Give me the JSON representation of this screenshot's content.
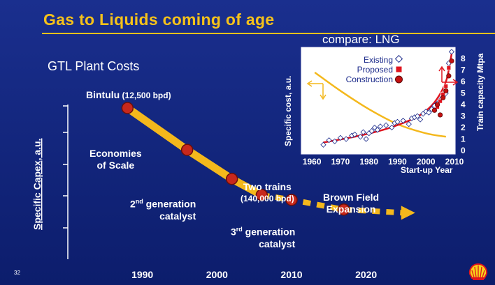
{
  "slide": {
    "title": "Gas to Liquids coming of age",
    "subtitle": "GTL Plant Costs",
    "page_number": "32",
    "logo": "shell-pecten-icon"
  },
  "main_chart": {
    "ylabel": "Specific Capex, a.u.",
    "x_ticks": [
      "1990",
      "2000",
      "2010",
      "2020"
    ],
    "x_tick_values": [
      1990,
      2000,
      2010,
      2020
    ],
    "x_range": [
      1980,
      2028
    ],
    "labels": {
      "bintulu": "Bintulu",
      "bintulu_sub": " (12,500 bpd)",
      "economies_1": "Economies",
      "economies_2": "of Scale",
      "gen2_pre": "2",
      "gen2_sup": "nd",
      "gen2_post": " generation",
      "gen2_line2": "catalyst",
      "two_trains_1": "Two trains",
      "two_trains_2": "(140,000 bpd)",
      "gen3_pre": "3",
      "gen3_sup": "rd",
      "gen3_post": " generation",
      "gen3_line2": "catalyst",
      "brown_1": "Brown Field",
      "brown_2": "Expansion"
    }
  },
  "chart_data": [
    {
      "type": "line",
      "title": "GTL Plant Costs",
      "ylabel": "Specific Capex, a.u.",
      "x_range": [
        1980,
        2028
      ],
      "series": [
        {
          "name": "",
          "points": [
            [
              1988,
              1.0
            ],
            [
              1996,
              0.74
            ],
            [
              2002,
              0.56
            ],
            [
              2006,
              0.46
            ],
            [
              2010,
              0.43
            ],
            [
              2017,
              0.37
            ]
          ],
          "style": "solid-then-dashed"
        }
      ],
      "milestones": [
        {
          "x": 1988,
          "label": "Bintulu (12,500 bpd)"
        },
        {
          "x": 1996,
          "label": "Economies of Scale"
        },
        {
          "x": 2002,
          "label": "2nd generation catalyst"
        },
        {
          "x": 2006,
          "label": "Two trains (140,000 bpd)"
        },
        {
          "x": 2010,
          "label": "3rd generation catalyst"
        },
        {
          "x": 2017,
          "label": "Brown Field Expansion"
        }
      ]
    },
    {
      "type": "scatter",
      "title": "compare: LNG",
      "xlabel": "Start-up Year",
      "ylabel_left": "Specific cost, a.u.",
      "ylabel_right": "Train capacity Mtpa",
      "x_ticks": [
        "1960",
        "1970",
        "1980",
        "1990",
        "2000",
        "2010"
      ],
      "x_tick_values": [
        1960,
        1970,
        1980,
        1990,
        2000,
        2010
      ],
      "y_right_ticks": [
        "0",
        "1",
        "2",
        "3",
        "4",
        "5",
        "6",
        "7",
        "8"
      ],
      "y_right_tick_values": [
        0,
        1,
        2,
        3,
        4,
        5,
        6,
        7,
        8
      ],
      "xlim": [
        1958,
        2010
      ],
      "ylim_right": [
        0,
        8.8
      ],
      "legend": [
        "Existing",
        "Proposed",
        "Construction"
      ],
      "legend_position": "top-right",
      "cost_curve": {
        "name": "",
        "x": [
          1961,
          1970,
          1980,
          1990,
          2000,
          2007
        ],
        "y": [
          6.8,
          5.2,
          3.6,
          2.3,
          1.5,
          1.2
        ]
      },
      "capacity_trend": {
        "name": "",
        "x": [
          1964,
          1975,
          1985,
          1992,
          1998,
          2003,
          2007,
          2009
        ],
        "y": [
          0.7,
          1.2,
          1.8,
          2.4,
          3.1,
          4.2,
          6.0,
          8.4
        ]
      },
      "existing": {
        "name": "Existing",
        "x": [
          1964,
          1966,
          1968,
          1970,
          1972,
          1974,
          1975,
          1977,
          1978,
          1979,
          1980,
          1981,
          1982,
          1983,
          1984,
          1986,
          1988,
          1989,
          1990,
          1992,
          1994,
          1995,
          1996,
          1997,
          1998,
          1999,
          2000,
          2001,
          2002,
          2003,
          2004,
          2005,
          2006,
          2007,
          2008,
          2009
        ],
        "y": [
          0.5,
          0.9,
          0.8,
          1.1,
          1.0,
          1.3,
          1.4,
          1.2,
          1.6,
          1.0,
          1.5,
          1.7,
          2.0,
          1.8,
          2.1,
          2.2,
          2.0,
          2.4,
          2.5,
          2.6,
          2.3,
          2.8,
          2.9,
          3.0,
          2.7,
          3.2,
          3.4,
          3.3,
          3.6,
          3.9,
          4.1,
          4.4,
          4.7,
          5.0,
          7.6,
          8.6
        ]
      },
      "proposed": {
        "name": "Proposed",
        "x": [
          2004,
          2005,
          2006,
          2007,
          2008
        ],
        "y": [
          3.8,
          4.3,
          4.9,
          5.6,
          7.2
        ]
      },
      "construction": {
        "name": "Construction",
        "x": [
          2003,
          2004,
          2005,
          2006,
          2007,
          2008,
          2009
        ],
        "y": [
          3.5,
          4.0,
          3.1,
          4.6,
          5.2,
          6.5,
          7.8
        ]
      },
      "colors": {
        "cost_curve": "#f4b81c",
        "capacity_trend": "#e0141e",
        "existing": "#ffffff",
        "proposed": "#e0141e",
        "construction": "#c41010"
      }
    }
  ]
}
